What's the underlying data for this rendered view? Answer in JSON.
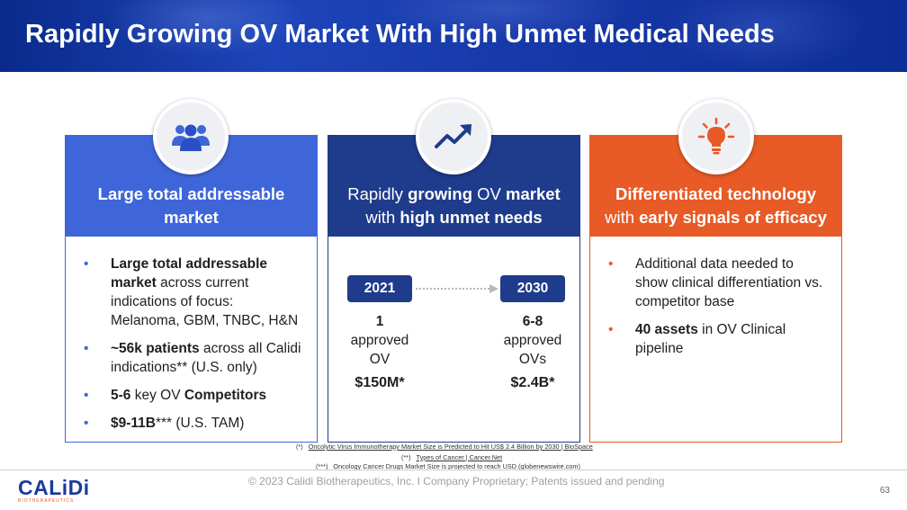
{
  "header": {
    "title": "Rapidly Growing OV Market With High Unmet Medical Needs"
  },
  "cards": [
    {
      "heading_line1": "Large total addressable",
      "heading_line2": "market",
      "icon": "people-group-icon",
      "bullets": [
        {
          "bold": "Large total addressable market",
          "text": " across current indications of focus: Melanoma, GBM, TNBC, H&N"
        },
        {
          "bold": "~56k patients",
          "text": " across all Calidi indications** (U.S. only)"
        },
        {
          "bold_a": "5-6",
          "text": " key OV ",
          "bold_b": "Competitors"
        },
        {
          "bold": "$9-11B",
          "text": "*** (U.S. TAM)"
        }
      ]
    },
    {
      "heading_line1_a": "Rapidly ",
      "heading_line1_b": "growing",
      "heading_line1_c": " OV ",
      "heading_line1_d": "market",
      "heading_line2_a": "with ",
      "heading_line2_b": "high unmet needs",
      "icon": "trend-up-icon",
      "timeline": [
        {
          "year": "2021",
          "count": "1",
          "label_line1": "approved",
          "label_line2": "OV",
          "value": "$150M*"
        },
        {
          "year": "2030",
          "count": "6-8",
          "label_line1": "approved",
          "label_line2": "OVs",
          "value": "$2.4B*"
        }
      ]
    },
    {
      "heading_line1": "Differentiated technology",
      "heading_line2_a": "with ",
      "heading_line2_b": "early signals of efficacy",
      "icon": "lightbulb-icon",
      "bullets": [
        {
          "text": "Additional data needed to show clinical differentiation vs. competitor base"
        },
        {
          "bold": "40 assets",
          "text": " in OV Clinical pipeline"
        }
      ]
    }
  ],
  "footnotes": [
    {
      "marker": "(*)",
      "text": "Oncolytic Virus Immunotherapy Market Size is Predicted to Hit US$ 2.4 Billion by 2030 | BioSpace"
    },
    {
      "marker": "(**)",
      "text": "Types of Cancer | Cancer.Net"
    },
    {
      "marker": "(***)",
      "text": "Oncology Cancer Drugs Market Size is projected to reach USD (globenewswire.com)"
    }
  ],
  "footer": {
    "logo_text": "CALiDi",
    "logo_subtext": "BIOTHERAPEUTICS",
    "copyright": "© 2023 Calidi Biotherapeutics, Inc. I  Company Proprietary; Patents issued and pending",
    "page_number": "63"
  },
  "colors": {
    "blue": "#3f66d9",
    "navy": "#1f3b8c",
    "orange": "#e85a26",
    "banner": "#1638a8"
  }
}
